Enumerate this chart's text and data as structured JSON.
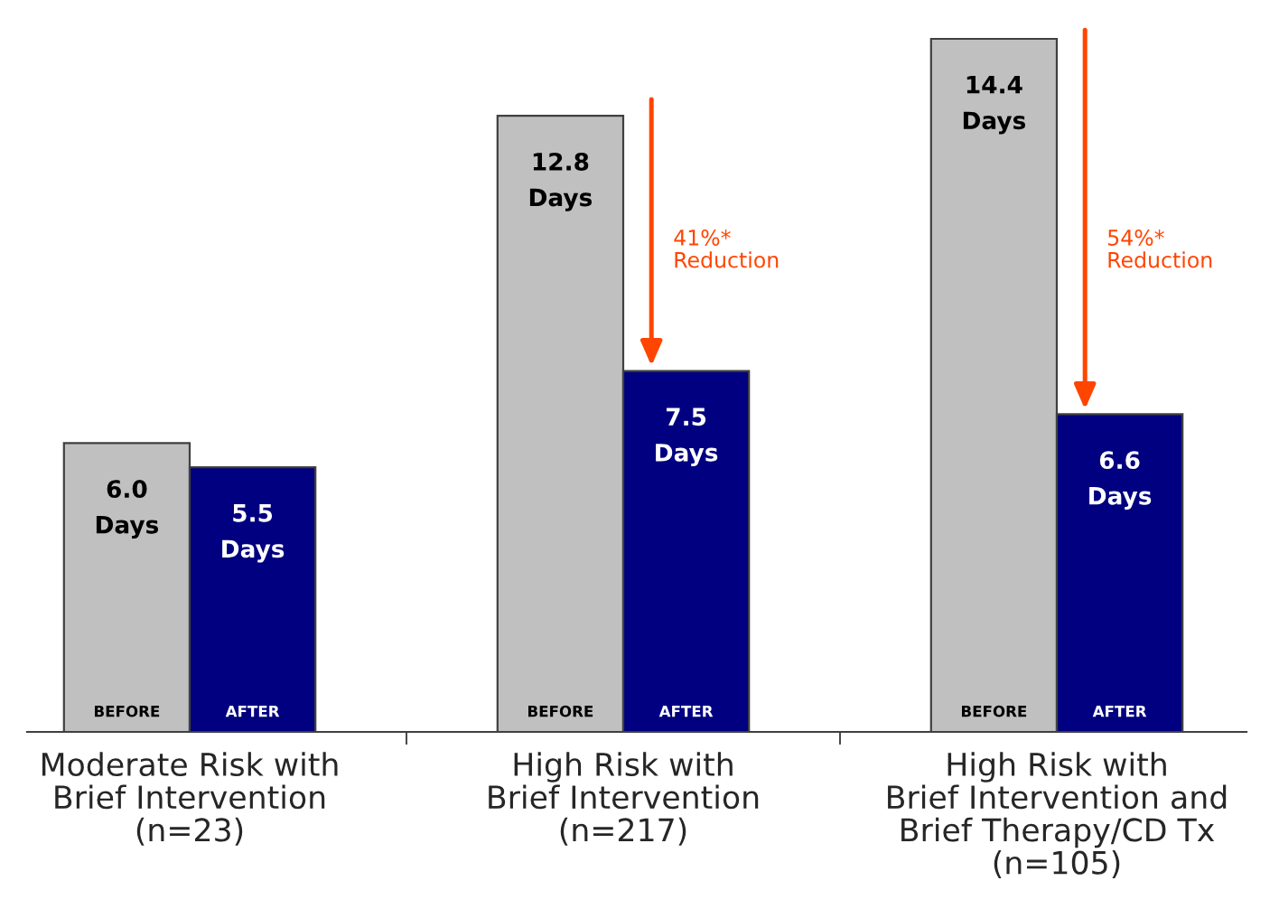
{
  "chart_data": {
    "type": "bar",
    "categories": [
      "Moderate Risk with\nBrief Intervention\n(n=23)",
      "High Risk with\nBrief Intervention\n(n=217)",
      "High Risk with\nBrief Intervention and\nBrief Therapy/CD Tx\n(n=105)"
    ],
    "series": [
      {
        "name": "BEFORE",
        "color": "#c0c0c0",
        "values": [
          6.0,
          12.8,
          14.4
        ],
        "value_labels": [
          "6.0\nDays",
          "12.8\nDays",
          "14.4\nDays"
        ]
      },
      {
        "name": "AFTER",
        "color": "#000080",
        "values": [
          5.5,
          7.5,
          6.6
        ],
        "value_labels": [
          "5.5\nDays",
          "7.5\nDays",
          "6.6\nDays"
        ]
      }
    ],
    "annotations": [
      {
        "text": "41%*\nReduction",
        "x": "High Risk with\nBrief Intervention\n(n=217)",
        "y": 10.0
      },
      {
        "text": "54%*\nReduction",
        "x": "High Risk with\nBrief Intervention and\nBrief Therapy/CD Tx\n(n=105)",
        "y": 10.0
      }
    ]
  }
}
